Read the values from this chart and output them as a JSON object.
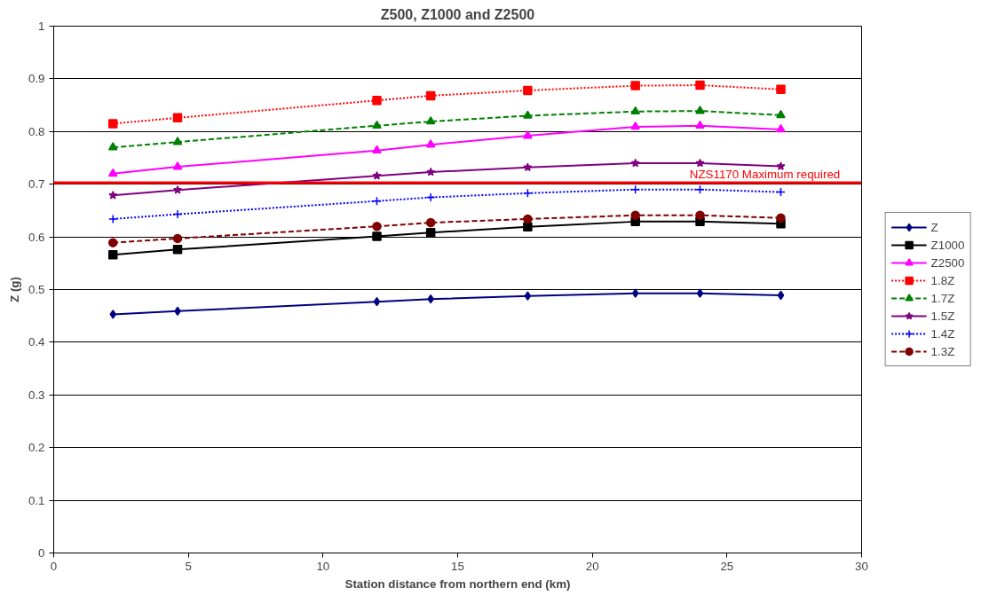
{
  "chart_data": {
    "type": "line",
    "title": "Z500, Z1000 and Z2500",
    "xlabel": "Station distance from northern end (km)",
    "ylabel": "Z (g)",
    "x": [
      2.2,
      4.6,
      12.0,
      14.0,
      17.6,
      21.6,
      24.0,
      27.0
    ],
    "series": [
      {
        "name": "Z",
        "color": "#000080",
        "marker": "diamond",
        "line_style": "solid",
        "values": [
          0.453,
          0.459,
          0.477,
          0.482,
          0.488,
          0.493,
          0.493,
          0.489
        ]
      },
      {
        "name": "Z1000",
        "color": "#000000",
        "marker": "square",
        "line_style": "solid",
        "values": [
          0.566,
          0.576,
          0.601,
          0.608,
          0.619,
          0.629,
          0.629,
          0.625
        ]
      },
      {
        "name": "Z2500",
        "color": "#ff00ff",
        "marker": "triangle",
        "line_style": "solid",
        "values": [
          0.72,
          0.733,
          0.764,
          0.775,
          0.792,
          0.809,
          0.811,
          0.804
        ]
      },
      {
        "name": "1.8Z",
        "color": "#ff0000",
        "marker": "square",
        "line_style": "dotted",
        "values": [
          0.815,
          0.826,
          0.859,
          0.868,
          0.878,
          0.887,
          0.888,
          0.88
        ]
      },
      {
        "name": "1.7Z",
        "color": "#008000",
        "marker": "triangle",
        "line_style": "dashed",
        "values": [
          0.77,
          0.78,
          0.811,
          0.819,
          0.83,
          0.838,
          0.839,
          0.831
        ]
      },
      {
        "name": "1.5Z",
        "color": "#800080",
        "marker": "star",
        "line_style": "solid",
        "values": [
          0.679,
          0.689,
          0.716,
          0.723,
          0.732,
          0.74,
          0.74,
          0.734
        ]
      },
      {
        "name": "1.4Z",
        "color": "#0000ff",
        "marker": "cross",
        "line_style": "dotted",
        "values": [
          0.634,
          0.643,
          0.668,
          0.675,
          0.683,
          0.69,
          0.69,
          0.685
        ]
      },
      {
        "name": "1.3Z",
        "color": "#800000",
        "marker": "circle",
        "line_style": "dashed",
        "values": [
          0.589,
          0.597,
          0.62,
          0.627,
          0.634,
          0.641,
          0.641,
          0.636
        ]
      }
    ],
    "xlim": [
      0,
      30
    ],
    "xticks": [
      0,
      5,
      10,
      15,
      20,
      25,
      30
    ],
    "ylim": [
      0,
      1
    ],
    "yticks": [
      0,
      0.1,
      0.2,
      0.3,
      0.4,
      0.5,
      0.6,
      0.7,
      0.8,
      0.9,
      1
    ],
    "ref_lines": [
      {
        "axis": "y",
        "value": 0.703,
        "label": "NZS1170 Maximum required",
        "color": "#ff0000"
      }
    ],
    "grid": "y",
    "legend": "right"
  }
}
